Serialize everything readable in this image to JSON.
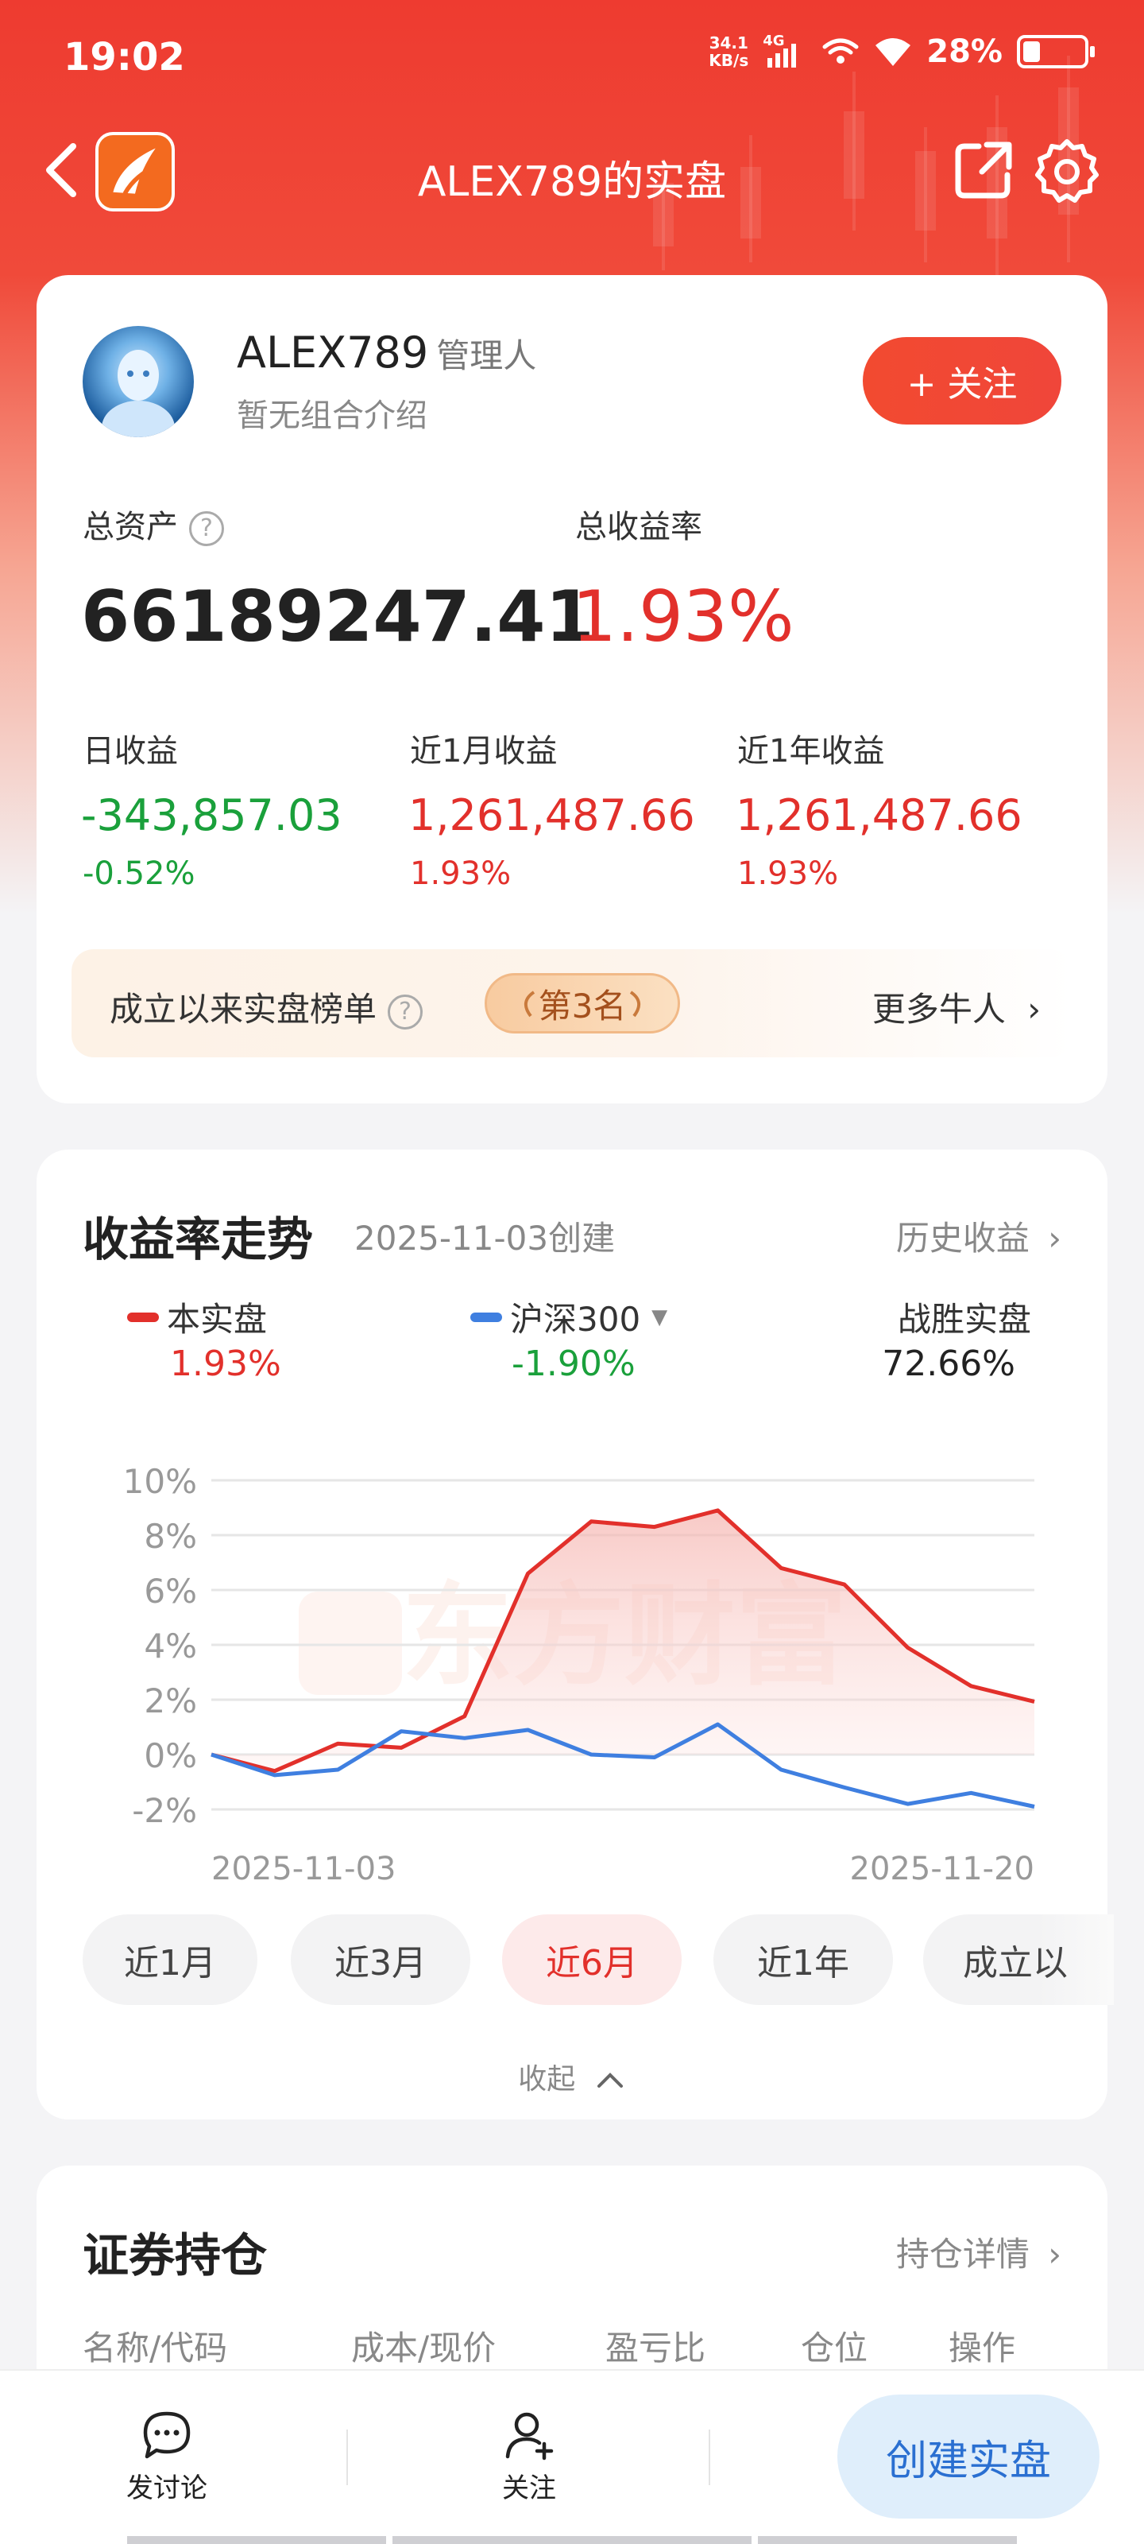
{
  "status_bar": {
    "time": "19:02",
    "net_speed_value": "34.1",
    "net_speed_unit": "KB/s",
    "net_type": "4G",
    "battery_pct": "28%",
    "battery_level": 0.28
  },
  "nav": {
    "title": "ALEX789的实盘"
  },
  "profile": {
    "name": "ALEX789",
    "role": "管理人",
    "intro": "暂无组合介绍",
    "follow_label": "+ 关注",
    "total_assets_label": "总资产",
    "total_assets_value": "66189247.41",
    "total_return_label": "总收益率",
    "total_return_value": "1.93%",
    "stats": [
      {
        "label": "日收益",
        "value": "-343,857.03",
        "pct": "-0.52%",
        "color": "green"
      },
      {
        "label": "近1月收益",
        "value": "1,261,487.66",
        "pct": "1.93%",
        "color": "red"
      },
      {
        "label": "近1年收益",
        "value": "1,261,487.66",
        "pct": "1.93%",
        "color": "red"
      }
    ],
    "rank_label": "成立以来实盘榜单",
    "rank_badge": "第3名",
    "more_label": "更多牛人"
  },
  "trend": {
    "title": "收益率走势",
    "created": "2025-11-03创建",
    "history_link": "历史收益",
    "legend": [
      {
        "name": "本实盘",
        "value": "1.93%",
        "color": "#e2302b"
      },
      {
        "name": "沪深300",
        "value": "-1.90%",
        "color": "#3f7fe0"
      }
    ],
    "win_label": "战胜实盘",
    "win_value": "72.66%",
    "watermark": "东方财富",
    "periods": [
      "近1月",
      "近3月",
      "近6月",
      "近1年",
      "成立以"
    ],
    "active_period": 2,
    "collapse_label": "收起"
  },
  "chart_data": {
    "type": "line",
    "x_start_label": "2025-11-03",
    "x_end_label": "2025-11-20",
    "y_ticks": [
      "10%",
      "8%",
      "6%",
      "4%",
      "2%",
      "0%",
      "-2%"
    ],
    "ylim": [
      -2,
      10
    ],
    "series": [
      {
        "name": "本实盘",
        "color": "#e2302b",
        "values": [
          0.0,
          -0.6,
          0.4,
          0.25,
          1.4,
          6.6,
          8.5,
          8.3,
          8.9,
          6.8,
          6.2,
          3.9,
          2.5,
          1.93
        ]
      },
      {
        "name": "沪深300",
        "color": "#3f7fe0",
        "values": [
          0.0,
          -0.75,
          -0.55,
          0.85,
          0.6,
          0.9,
          0.0,
          -0.1,
          1.1,
          -0.55,
          -1.2,
          -1.8,
          -1.4,
          -1.9
        ]
      }
    ]
  },
  "holdings": {
    "title": "证券持仓",
    "detail_link": "持仓详情",
    "columns": [
      "名称/代码",
      "成本/现价",
      "盈亏比",
      "仓位",
      "操作"
    ]
  },
  "bottom_bar": {
    "discuss_label": "发讨论",
    "follow_label": "关注",
    "create_label": "创建实盘"
  }
}
